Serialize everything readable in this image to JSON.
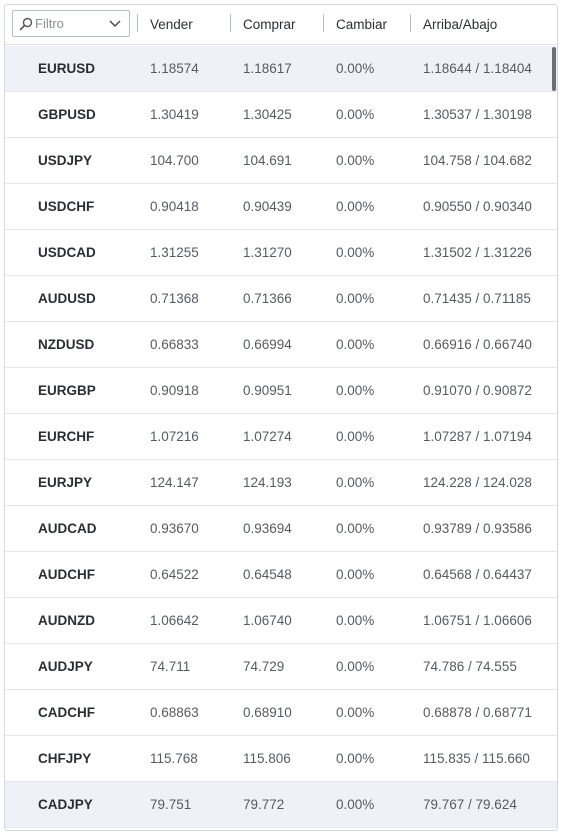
{
  "filter": {
    "placeholder": "Filtro"
  },
  "columns": {
    "sell": "Vender",
    "buy": "Comprar",
    "change": "Cambiar",
    "highlow": "Arriba/Abajo"
  },
  "rows": [
    {
      "symbol": "EURUSD",
      "sell": "1.18574",
      "buy": "1.18617",
      "change": "0.00%",
      "highlow": "1.18644 / 1.18404"
    },
    {
      "symbol": "GBPUSD",
      "sell": "1.30419",
      "buy": "1.30425",
      "change": "0.00%",
      "highlow": "1.30537 / 1.30198"
    },
    {
      "symbol": "USDJPY",
      "sell": "104.700",
      "buy": "104.691",
      "change": "0.00%",
      "highlow": "104.758 / 104.682"
    },
    {
      "symbol": "USDCHF",
      "sell": "0.90418",
      "buy": "0.90439",
      "change": "0.00%",
      "highlow": "0.90550 / 0.90340"
    },
    {
      "symbol": "USDCAD",
      "sell": "1.31255",
      "buy": "1.31270",
      "change": "0.00%",
      "highlow": "1.31502 / 1.31226"
    },
    {
      "symbol": "AUDUSD",
      "sell": "0.71368",
      "buy": "0.71366",
      "change": "0.00%",
      "highlow": "0.71435 / 0.71185"
    },
    {
      "symbol": "NZDUSD",
      "sell": "0.66833",
      "buy": "0.66994",
      "change": "0.00%",
      "highlow": "0.66916 / 0.66740"
    },
    {
      "symbol": "EURGBP",
      "sell": "0.90918",
      "buy": "0.90951",
      "change": "0.00%",
      "highlow": "0.91070 / 0.90872"
    },
    {
      "symbol": "EURCHF",
      "sell": "1.07216",
      "buy": "1.07274",
      "change": "0.00%",
      "highlow": "1.07287 / 1.07194"
    },
    {
      "symbol": "EURJPY",
      "sell": "124.147",
      "buy": "124.193",
      "change": "0.00%",
      "highlow": "124.228 / 124.028"
    },
    {
      "symbol": "AUDCAD",
      "sell": "0.93670",
      "buy": "0.93694",
      "change": "0.00%",
      "highlow": "0.93789 / 0.93586"
    },
    {
      "symbol": "AUDCHF",
      "sell": "0.64522",
      "buy": "0.64548",
      "change": "0.00%",
      "highlow": "0.64568 / 0.64437"
    },
    {
      "symbol": "AUDNZD",
      "sell": "1.06642",
      "buy": "1.06740",
      "change": "0.00%",
      "highlow": "1.06751 / 1.06606"
    },
    {
      "symbol": "AUDJPY",
      "sell": "74.711",
      "buy": "74.729",
      "change": "0.00%",
      "highlow": "74.786 / 74.555"
    },
    {
      "symbol": "CADCHF",
      "sell": "0.68863",
      "buy": "0.68910",
      "change": "0.00%",
      "highlow": "0.68878 / 0.68771"
    },
    {
      "symbol": "CHFJPY",
      "sell": "115.768",
      "buy": "115.806",
      "change": "0.00%",
      "highlow": "115.835 / 115.660"
    },
    {
      "symbol": "CADJPY",
      "sell": "79.751",
      "buy": "79.772",
      "change": "0.00%",
      "highlow": "79.767 / 79.624"
    }
  ],
  "icons": {
    "filter": "magnifier-icon",
    "dropdown": "chevron-down-icon"
  },
  "colors": {
    "highlight_row": "#eef2f8",
    "border": "#d4d8de"
  }
}
